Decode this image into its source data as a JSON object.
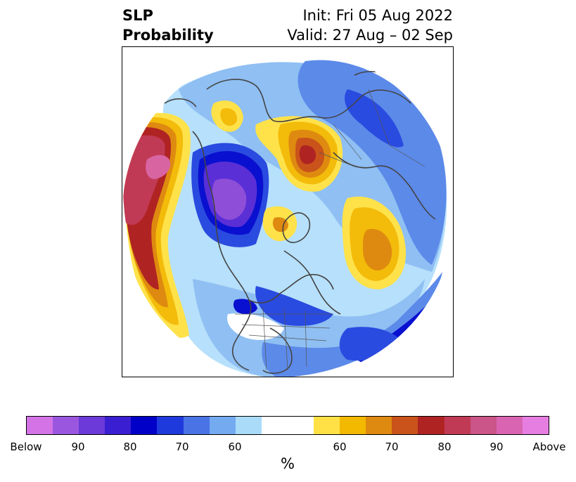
{
  "title": {
    "left_line1": "SLP",
    "left_line2": "Probability",
    "right_line1": "Init: Fri 05 Aug 2022",
    "right_line2": "Valid: 27 Aug – 02 Sep"
  },
  "colorbar": {
    "label": "%",
    "colors": [
      "#d373e6",
      "#9b56e0",
      "#6b3ad8",
      "#3a1ed2",
      "#0000c8",
      "#1f3adc",
      "#4a73e6",
      "#74aaf0",
      "#aadcfa",
      "#ffffff",
      "#ffffff",
      "#ffe145",
      "#f2b900",
      "#de8a10",
      "#c9531a",
      "#b02323",
      "#c13a55",
      "#cb5488",
      "#d964b2",
      "#e67ee2"
    ],
    "tick_labels": [
      "Below",
      "90",
      "80",
      "70",
      "60",
      "60",
      "70",
      "80",
      "90",
      "Above"
    ]
  },
  "map": {
    "projection": "north-polar-stereographic",
    "colors": {
      "below_strong": "#8f4ed8",
      "below_purple": "#5a2fd6",
      "below_deep": "#0a10cf",
      "below_mid": "#2a4be0",
      "below_light": "#5c8ae9",
      "below_pale": "#8fbff3",
      "below_faint": "#b6e0fb",
      "above_yellow": "#ffe24a",
      "above_gold": "#f3bb0a",
      "above_orange": "#de8a10",
      "above_dark_orange": "#c9531a",
      "above_red": "#b02323",
      "above_rose": "#c13a55",
      "above_pink": "#d964a2",
      "coastline": "#444444"
    }
  }
}
